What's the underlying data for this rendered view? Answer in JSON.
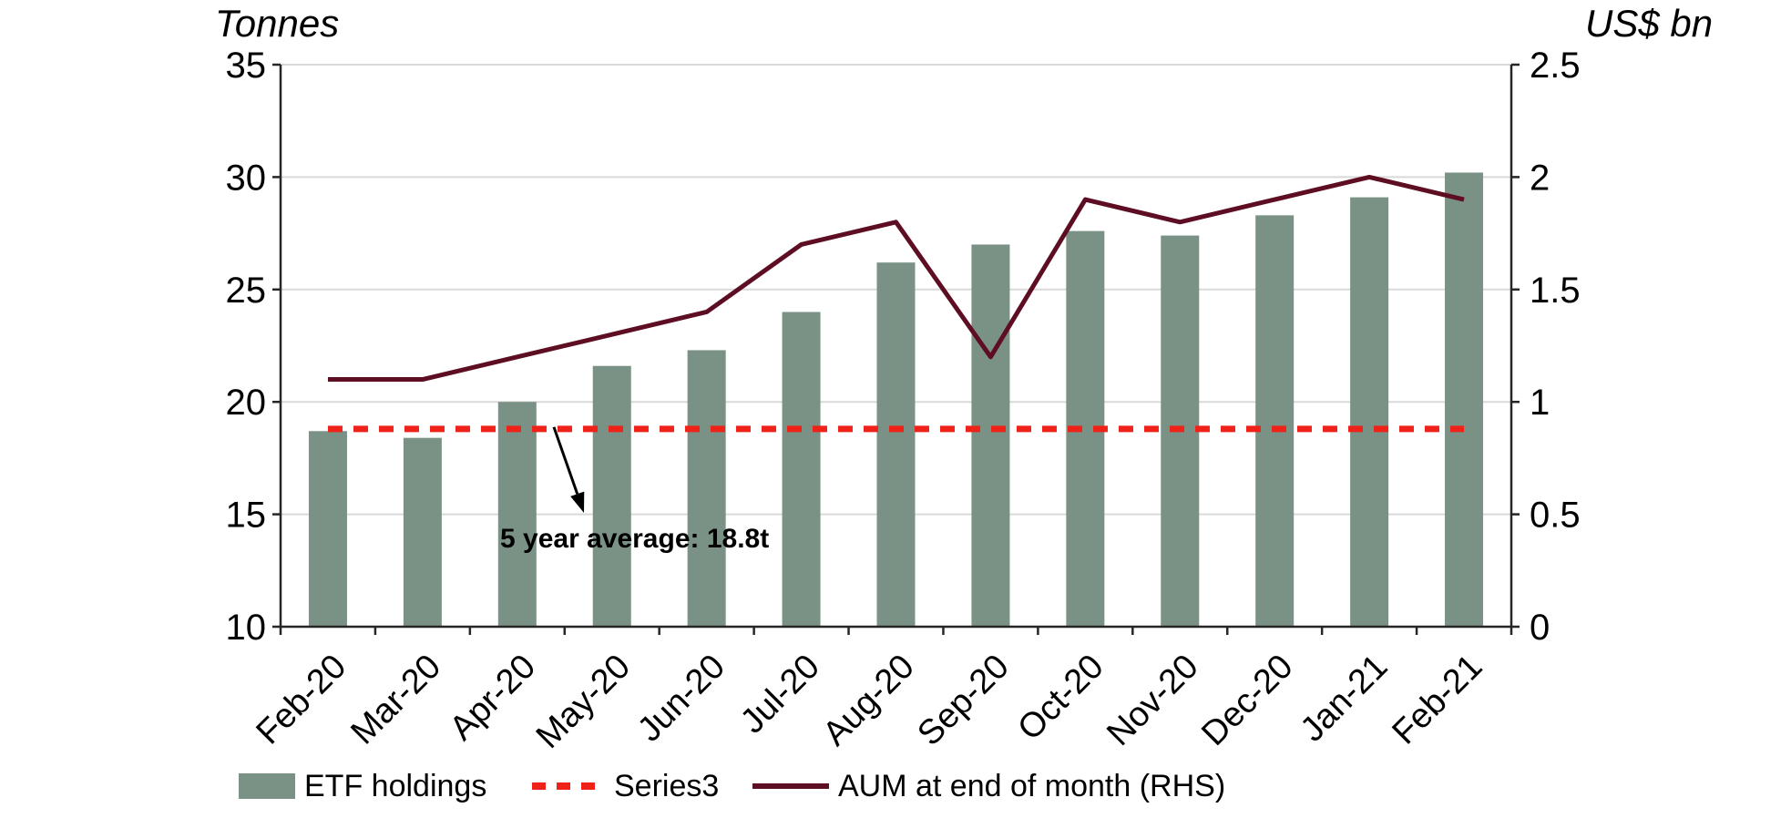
{
  "chart_data": {
    "type": "combo-bar-line",
    "categories": [
      "Feb-20",
      "Mar-20",
      "Apr-20",
      "May-20",
      "Jun-20",
      "Jul-20",
      "Aug-20",
      "Sep-20",
      "Oct-20",
      "Nov-20",
      "Dec-20",
      "Jan-21",
      "Feb-21"
    ],
    "series": [
      {
        "name": "ETF holdings",
        "type": "bar",
        "axis": "left",
        "color": "#7A9285",
        "values": [
          18.7,
          18.4,
          20.0,
          21.6,
          22.3,
          24.0,
          26.2,
          27.0,
          27.6,
          27.4,
          28.3,
          29.1,
          30.2
        ]
      },
      {
        "name": "Series3",
        "type": "line",
        "dashed": true,
        "axis": "left",
        "color": "#EE2218",
        "values": [
          18.8,
          18.8,
          18.8,
          18.8,
          18.8,
          18.8,
          18.8,
          18.8,
          18.8,
          18.8,
          18.8,
          18.8,
          18.8
        ]
      },
      {
        "name": "AUM at end of month (RHS)",
        "type": "line",
        "dashed": false,
        "axis": "right",
        "color": "#5E0E23",
        "values": [
          1.1,
          1.1,
          1.2,
          1.3,
          1.4,
          1.7,
          1.8,
          1.2,
          1.9,
          1.8,
          1.9,
          2.0,
          1.9
        ]
      }
    ],
    "left_axis": {
      "title": "Tonnes",
      "min": 10,
      "max": 35,
      "tick_values": [
        35,
        30,
        25,
        20,
        15,
        10
      ],
      "tick_labels": [
        "35",
        "30",
        "25",
        "20",
        "15",
        "10"
      ],
      "grid": true
    },
    "right_axis": {
      "title": "US$ bn",
      "min": 0,
      "max": 2.5,
      "tick_values": [
        2.5,
        2.0,
        1.5,
        1.0,
        0.5,
        0
      ],
      "tick_labels": [
        "2.5",
        "2",
        "1.5",
        "1",
        "0.5",
        "0"
      ],
      "grid": false
    },
    "annotation": {
      "text": "5 year average: 18.8t",
      "target_series": "Series3",
      "target_value": 18.8
    },
    "legend_position": "bottom",
    "colors": {
      "grid": "#D9D9D9",
      "axis": "#262626",
      "text": "#000000",
      "background": "#FFFFFF"
    }
  }
}
